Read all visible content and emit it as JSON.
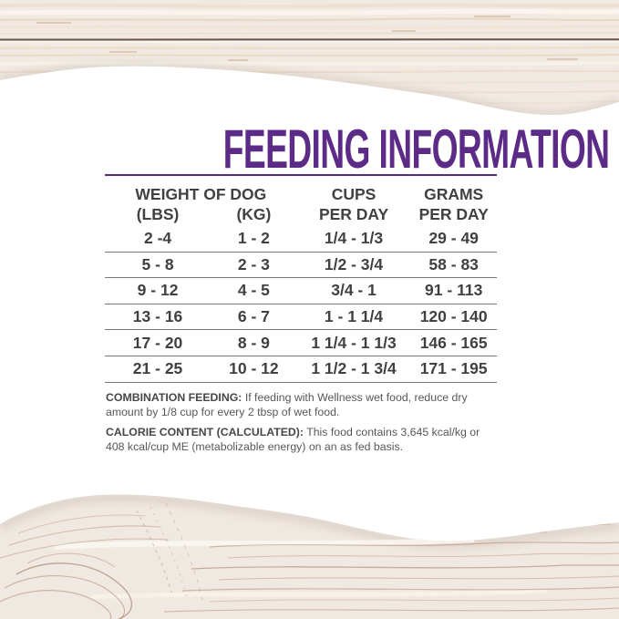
{
  "title": {
    "text": "FEEDING INFORMATION"
  },
  "table": {
    "header": {
      "weight_group": "WEIGHT OF DOG",
      "col_lbs": "(LBS)",
      "col_kg": "(KG)",
      "col_cups_line1": "CUPS",
      "col_cups_line2": "PER DAY",
      "col_grams_line1": "GRAMS",
      "col_grams_line2": "PER DAY"
    },
    "rows": [
      {
        "lbs": "2 -4",
        "kg": "1 - 2",
        "cups": "1/4 - 1/3",
        "grams": "29 - 49"
      },
      {
        "lbs": "5 - 8",
        "kg": "2 - 3",
        "cups": "1/2 - 3/4",
        "grams": "58 - 83"
      },
      {
        "lbs": "9 - 12",
        "kg": "4 - 5",
        "cups": "3/4 - 1",
        "grams": "91 - 113"
      },
      {
        "lbs": "13 - 16",
        "kg": "6 - 7",
        "cups": "1 - 1 1/4",
        "grams": "120 - 140"
      },
      {
        "lbs": "17 - 20",
        "kg": "8 - 9",
        "cups": "1 1/4 - 1 1/3",
        "grams": "146 - 165"
      },
      {
        "lbs": "21 - 25",
        "kg": "10 - 12",
        "cups": "1 1/2 - 1 3/4",
        "grams": "171 - 195"
      }
    ]
  },
  "notes": [
    {
      "label": "COMBINATION FEEDING:",
      "text": "If feeding with Wellness wet food, reduce dry amount by 1/8 cup for every 2 tbsp of wet food."
    },
    {
      "label": "CALORIE CONTENT (CALCULATED):",
      "text": "This food contains 3,645 kcal/kg or 408 kcal/cup ME (metabolizable energy) on an as fed basis."
    }
  ],
  "colors": {
    "accent_purple": "#5b2b87",
    "heading_gray": "#414042",
    "cell_gray": "#3f4042",
    "divider_gray": "#77787a",
    "note_gray": "#565759",
    "wood_base": "#f1eae2",
    "wood_seam": "#503a2c",
    "background": "#ffffff"
  }
}
